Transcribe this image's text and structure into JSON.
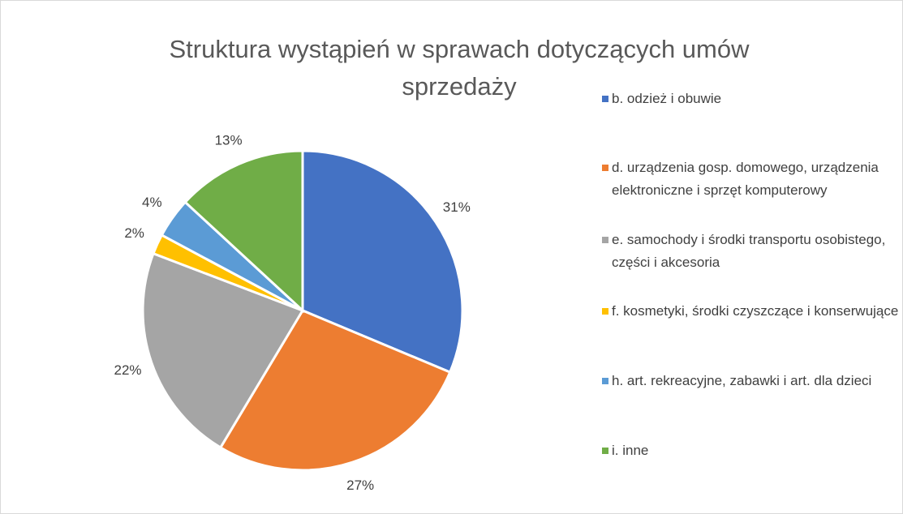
{
  "chart_data": {
    "type": "pie",
    "title": "Struktura wystąpień w sprawach dotyczących umów sprzedaży",
    "categories": [
      "b. odzież i obuwie",
      "d. urządzenia gosp. domowego, urządzenia elektroniczne i sprzęt komputerowy",
      "e. samochody i środki transportu osobistego, części i akcesoria",
      "f. kosmetyki, środki czyszczące i konserwujące",
      "h. art. rekreacyjne, zabawki i art. dla dzieci",
      "i. inne"
    ],
    "values": [
      31,
      27,
      22,
      2,
      4,
      13
    ],
    "value_labels": [
      "31%",
      "27%",
      "22%",
      "2%",
      "4%",
      "13%"
    ],
    "colors": [
      "#4472c4",
      "#ed7d31",
      "#a5a5a5",
      "#ffc000",
      "#5b9bd5",
      "#70ad47"
    ],
    "legend": "right"
  }
}
